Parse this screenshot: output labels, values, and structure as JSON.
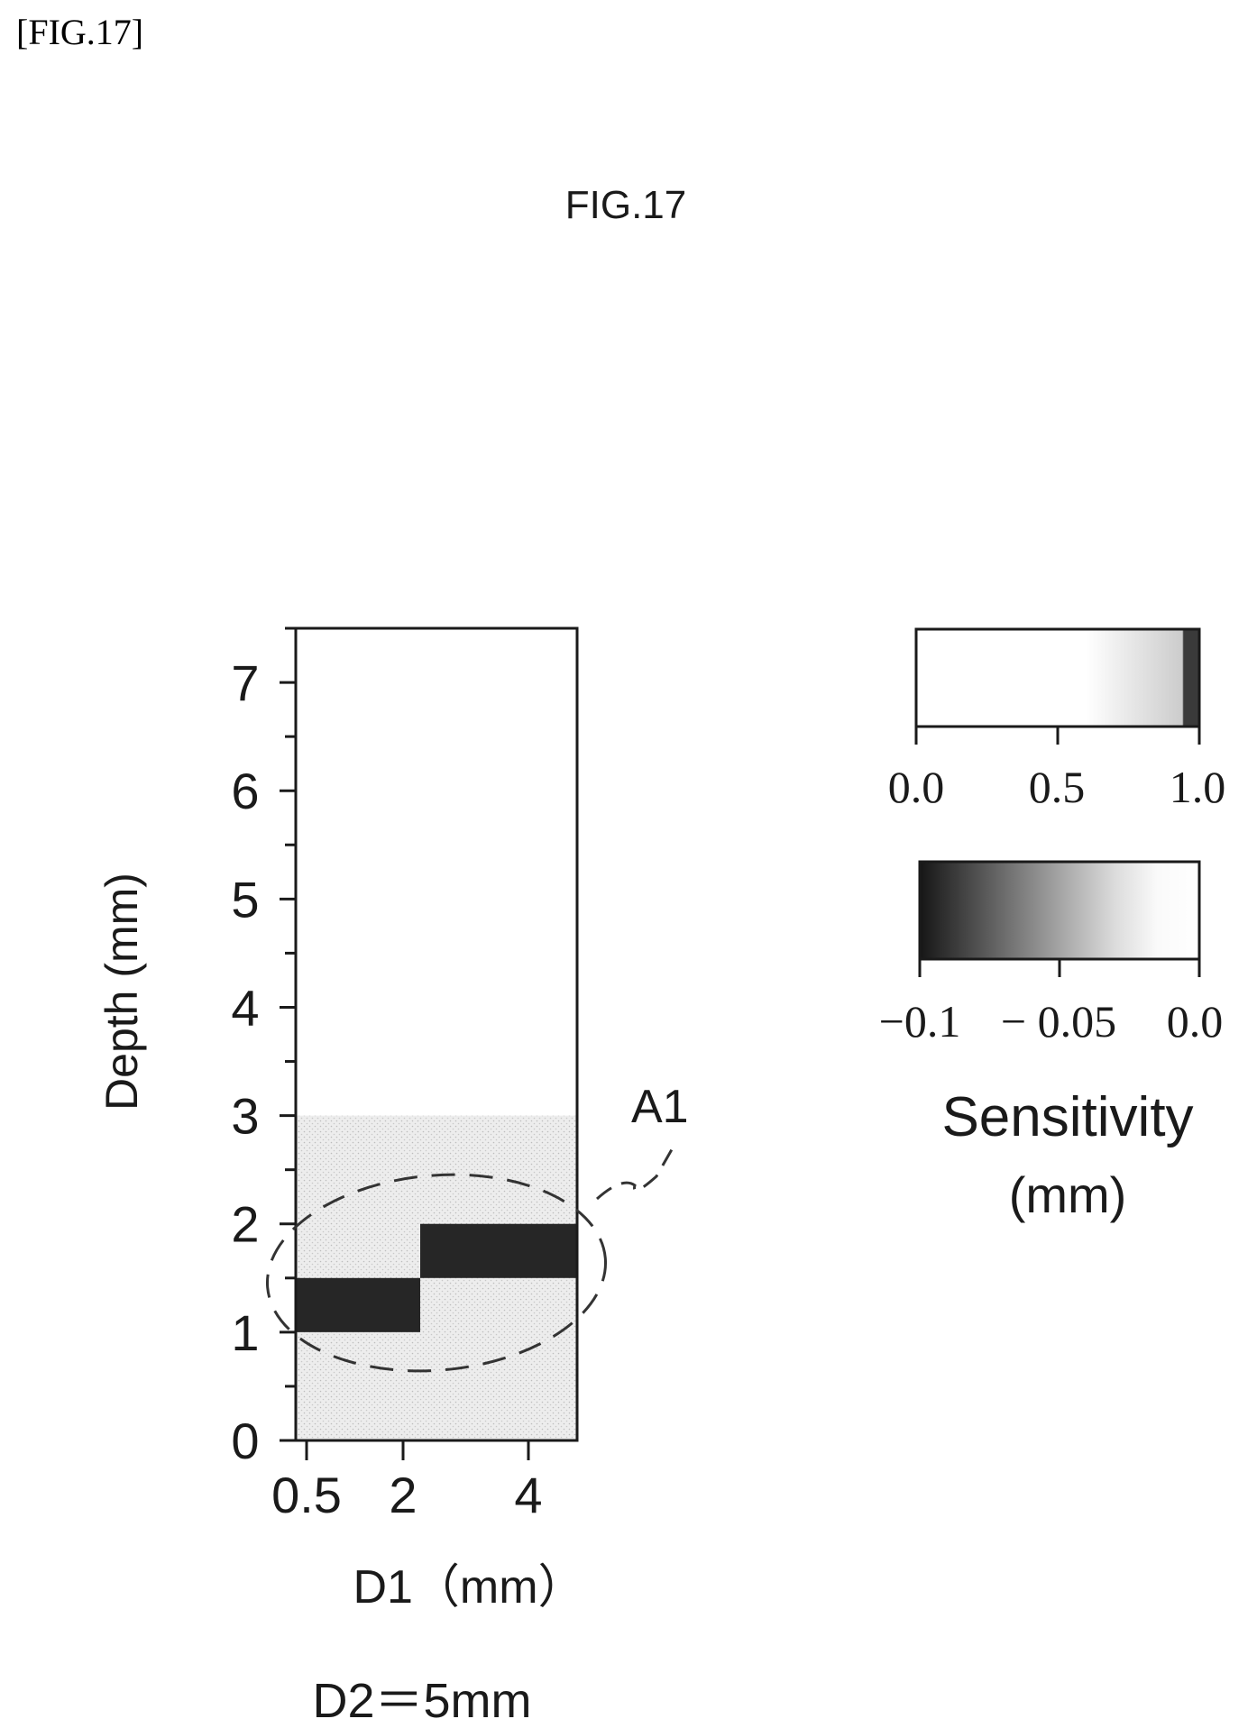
{
  "page": {
    "bracket_label": "[FIG.17]",
    "figure_title": "FIG.17",
    "condition_label": "D2＝5mm",
    "callout_label": "A1"
  },
  "chart_data": {
    "type": "heatmap",
    "title": "",
    "xlabel": "D1（mm）",
    "ylabel": "Depth (mm)",
    "x_ticks": [
      "0.5",
      "2",
      "4"
    ],
    "x_values": [
      0.5,
      2,
      4
    ],
    "y_ticks": [
      "0",
      "1",
      "2",
      "3",
      "4",
      "5",
      "6",
      "7"
    ],
    "y_values": [
      0,
      1,
      2,
      3,
      4,
      5,
      6,
      7
    ],
    "ylim": [
      0,
      7.5
    ],
    "cells": [
      {
        "d1": "0.5-2",
        "depth_range": [
          1.0,
          1.5
        ],
        "value": -0.1
      },
      {
        "d1": "2-4",
        "depth_range": [
          1.5,
          2.0
        ],
        "value": -0.1
      },
      {
        "d1": "all",
        "depth_range": [
          0,
          3.0
        ],
        "value": 0.9
      },
      {
        "d1": "all",
        "depth_range": [
          3.0,
          7.5
        ],
        "value": 0.0
      }
    ],
    "colorbars": [
      {
        "name": "positive",
        "range": [
          0.0,
          1.0
        ],
        "ticks": [
          "0.0",
          "0.5",
          "1.0"
        ],
        "colors": [
          "#ffffff",
          "#ffffff",
          "#e4e4e4",
          "#c8c8c8",
          "#404040"
        ]
      },
      {
        "name": "negative",
        "range": [
          -0.1,
          0.0
        ],
        "ticks": [
          "−0.1",
          "− 0.05",
          "0.0"
        ],
        "colors": [
          "#1a1a1a",
          "#8c8c8c",
          "#e0e0e0",
          "#ffffff"
        ]
      }
    ],
    "colorbar_label": "Sensitivity",
    "colorbar_unit": "(mm)"
  }
}
